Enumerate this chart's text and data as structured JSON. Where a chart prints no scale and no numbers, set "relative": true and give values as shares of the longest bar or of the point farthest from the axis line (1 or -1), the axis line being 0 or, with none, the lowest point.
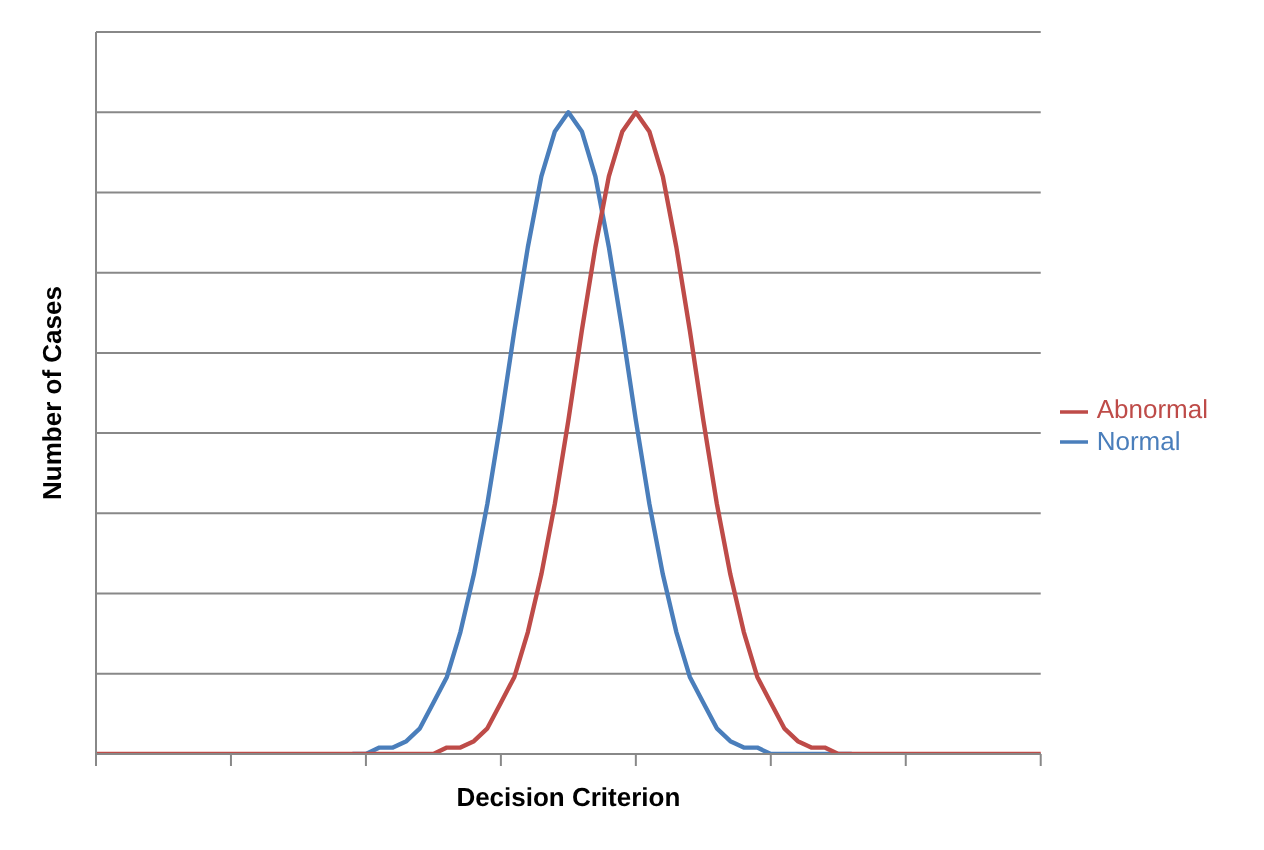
{
  "chart_data": {
    "type": "line",
    "relative": true,
    "xlabel": "Decision Criterion",
    "ylabel": "Number of Cases",
    "categories": [
      null,
      null,
      null,
      null,
      null,
      null,
      null,
      null,
      null,
      null,
      null,
      null,
      null,
      null,
      null,
      null,
      null,
      null,
      null,
      null,
      null,
      null,
      null,
      null,
      null,
      null,
      null,
      null,
      null,
      null,
      null,
      null,
      null,
      null,
      null,
      null,
      null,
      null,
      null,
      null,
      null,
      null,
      null,
      null,
      null,
      null,
      null,
      null,
      null,
      null,
      null,
      null,
      null,
      null,
      null,
      null,
      null,
      null,
      null,
      null,
      null,
      null,
      null,
      null,
      null,
      null,
      null,
      null,
      null,
      null,
      null
    ],
    "series": [
      {
        "name": "Normal",
        "color": "#4a7ebb",
        "values": [
          null,
          null,
          null,
          null,
          null,
          null,
          null,
          null,
          null,
          null,
          null,
          null,
          null,
          null,
          null,
          null,
          null,
          null,
          null,
          0,
          0,
          0.01,
          0.01,
          0.02,
          0.04,
          0.08,
          0.12,
          0.19,
          0.28,
          0.39,
          0.52,
          0.66,
          0.79,
          0.9,
          0.97,
          1,
          0.97,
          0.9,
          0.79,
          0.66,
          0.52,
          0.39,
          0.28,
          0.19,
          0.12,
          0.08,
          0.04,
          0.02,
          0.01,
          0.01,
          0,
          0,
          0,
          0,
          0,
          0,
          0,
          null,
          null,
          null,
          null,
          null,
          null,
          null,
          null,
          null,
          null,
          null,
          null,
          null,
          null
        ]
      },
      {
        "name": "Abnormal",
        "color": "#be4b48",
        "values": [
          0,
          0,
          0,
          0,
          0,
          0,
          0,
          0,
          0,
          0,
          0,
          0,
          0,
          0,
          0,
          0,
          0,
          0,
          0,
          0,
          0,
          0,
          0,
          0,
          0,
          0,
          0.01,
          0.01,
          0.02,
          0.04,
          0.08,
          0.12,
          0.19,
          0.28,
          0.39,
          0.52,
          0.66,
          0.79,
          0.9,
          0.97,
          1,
          0.97,
          0.9,
          0.79,
          0.66,
          0.52,
          0.39,
          0.28,
          0.19,
          0.12,
          0.08,
          0.04,
          0.02,
          0.01,
          0.01,
          0,
          0,
          0,
          0,
          0,
          0,
          0,
          0,
          0,
          0,
          0,
          0,
          0,
          0,
          0,
          0
        ]
      }
    ],
    "grid": "y",
    "legend": "right",
    "marker": "none",
    "line_style": "solid"
  }
}
